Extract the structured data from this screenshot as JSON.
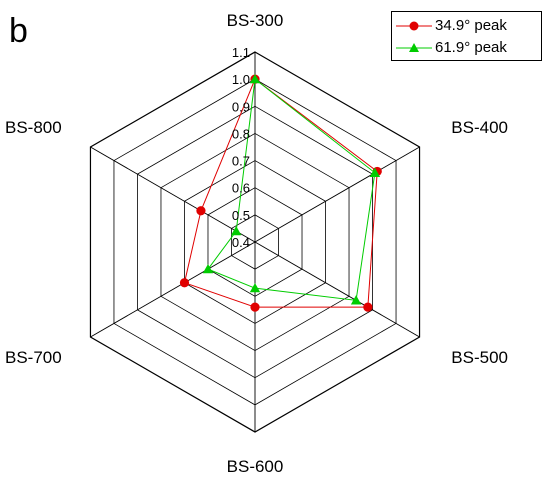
{
  "panel_label": "b",
  "chart_data": {
    "type": "radar",
    "axes": [
      "BS-300",
      "BS-400",
      "BS-500",
      "BS-600",
      "BS-700",
      "BS-800"
    ],
    "rlim": [
      0.4,
      1.1
    ],
    "r_ticks": [
      "0.4",
      "0.5",
      "0.6",
      "0.7",
      "0.8",
      "0.9",
      "1.0",
      "1.1"
    ],
    "grid": true,
    "legend_position": "top-right",
    "series": [
      {
        "name": "34.9° peak",
        "color": "#e00000",
        "marker": "circle",
        "values": [
          1.0,
          0.92,
          0.88,
          0.64,
          0.7,
          0.63
        ]
      },
      {
        "name": "61.9° peak",
        "color": "#00cc00",
        "marker": "triangle",
        "values": [
          1.0,
          0.91,
          0.83,
          0.57,
          0.6,
          0.48
        ]
      }
    ]
  }
}
